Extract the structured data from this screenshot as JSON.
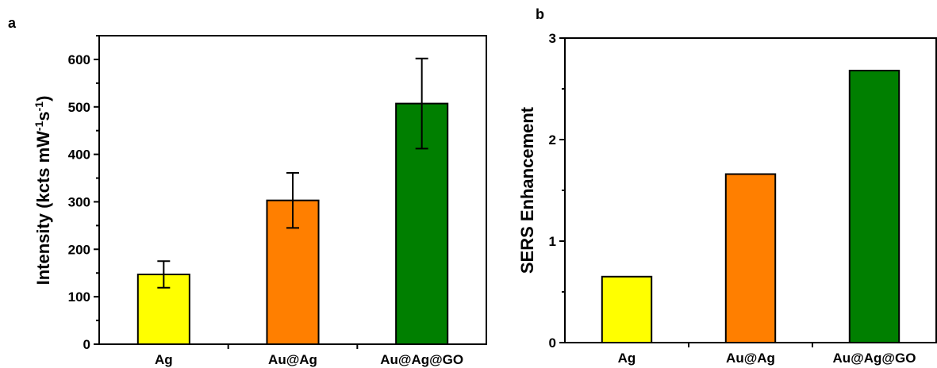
{
  "chart_data": [
    {
      "panel_label": "a",
      "type": "bar",
      "categories": [
        "Ag",
        "Au@Ag",
        "Au@Ag@GO"
      ],
      "values": [
        147,
        303,
        507
      ],
      "errors": [
        28,
        58,
        95
      ],
      "colors": [
        "#ffff00",
        "#ff7f00",
        "#007f00"
      ],
      "ylabel_main": "Intensity (kcts mW",
      "ylabel_sup1": "-1",
      "ylabel_mid": "s",
      "ylabel_sup2": "-1",
      "ylabel_end": ")",
      "ylim": [
        0,
        650
      ],
      "yticks": [
        0,
        100,
        200,
        300,
        400,
        500,
        600
      ],
      "ytick_labels": [
        "0",
        "100",
        "200",
        "300",
        "400",
        "500",
        "600"
      ],
      "grid": false
    },
    {
      "panel_label": "b",
      "type": "bar",
      "categories": [
        "Ag",
        "Au@Ag",
        "Au@Ag@GO"
      ],
      "values": [
        0.65,
        1.66,
        2.68
      ],
      "colors": [
        "#ffff00",
        "#ff7f00",
        "#007f00"
      ],
      "ylabel": "SERS Enhancement",
      "ylim": [
        0,
        3
      ],
      "yticks": [
        0,
        1,
        2,
        3
      ],
      "ytick_labels": [
        "0",
        "1",
        "2",
        "3"
      ],
      "grid": false
    }
  ]
}
